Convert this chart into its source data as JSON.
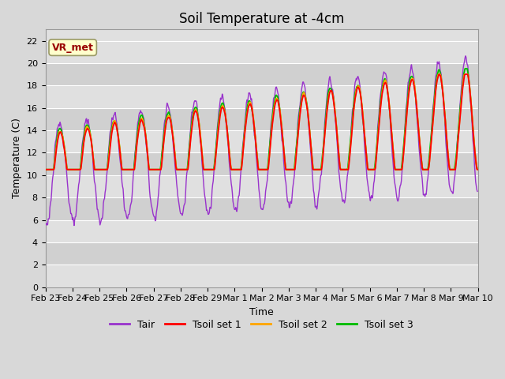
{
  "title": "Soil Temperature at -4cm",
  "xlabel": "Time",
  "ylabel": "Temperature (C)",
  "ylim": [
    0,
    23
  ],
  "yticks": [
    0,
    2,
    4,
    6,
    8,
    10,
    12,
    14,
    16,
    18,
    20,
    22
  ],
  "bg_color": "#d8d8d8",
  "plot_bg_color": "#e8e8e8",
  "band_colors": [
    "#e0e0e0",
    "#d0d0d0"
  ],
  "grid_color": "#ffffff",
  "line_colors": {
    "Tair": "#9933CC",
    "Tsoil1": "#FF0000",
    "Tsoil2": "#FFA500",
    "Tsoil3": "#00BB00"
  },
  "line_widths": {
    "Tair": 1.0,
    "Tsoil1": 1.3,
    "Tsoil2": 1.3,
    "Tsoil3": 1.3
  },
  "legend_labels": [
    "Tair",
    "Tsoil set 1",
    "Tsoil set 2",
    "Tsoil set 3"
  ],
  "annotation_text": "VR_met",
  "annotation_box_color": "#FFFFCC",
  "annotation_text_color": "#990000",
  "title_fontsize": 12,
  "axis_fontsize": 9,
  "tick_fontsize": 8,
  "legend_fontsize": 9
}
